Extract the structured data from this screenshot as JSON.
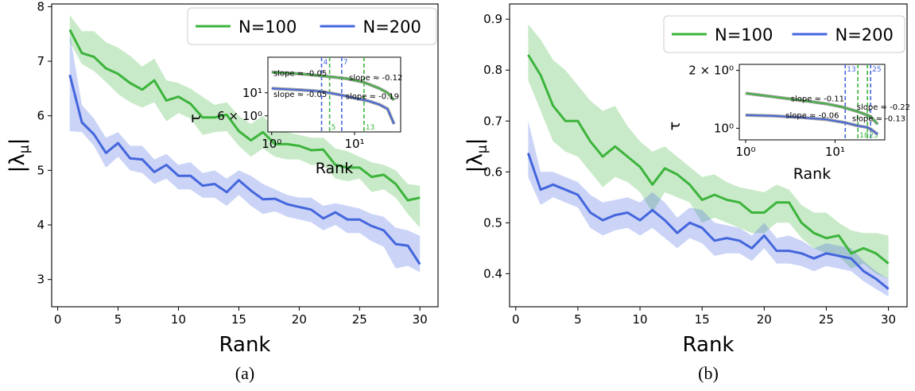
{
  "colors": {
    "n100": "#3cb43c",
    "n200": "#4466dd",
    "fit": "#888888"
  },
  "chart_data": [
    {
      "type": "line",
      "caption": "(a)",
      "xlabel": "Rank",
      "ylabel": "|λ",
      "ylabel_sub": "μ",
      "xlim": [
        -0.5,
        31.5
      ],
      "ylim": [
        2.5,
        8.05
      ],
      "xticks": [
        0,
        5,
        10,
        15,
        20,
        25,
        30
      ],
      "yticks": [
        3,
        4,
        5,
        6,
        7,
        8
      ],
      "legend_position": "top-right",
      "series": [
        {
          "name": "N=100",
          "x": [
            1,
            2,
            3,
            4,
            5,
            6,
            7,
            8,
            9,
            10,
            11,
            12,
            13,
            14,
            15,
            16,
            17,
            18,
            19,
            20,
            21,
            22,
            23,
            24,
            25,
            26,
            27,
            28,
            29,
            30
          ],
          "values": [
            7.58,
            7.15,
            7.08,
            6.87,
            6.77,
            6.6,
            6.48,
            6.65,
            6.28,
            6.35,
            6.22,
            5.97,
            5.97,
            6.02,
            5.72,
            5.55,
            5.7,
            5.48,
            5.48,
            5.45,
            5.37,
            5.38,
            5.1,
            5.05,
            5.05,
            4.88,
            4.92,
            4.75,
            4.45,
            4.5
          ],
          "upper": [
            7.85,
            7.55,
            7.55,
            7.35,
            7.25,
            7.1,
            6.9,
            7.05,
            6.65,
            6.6,
            6.5,
            6.35,
            6.2,
            6.25,
            6.0,
            5.85,
            6.0,
            5.75,
            5.7,
            5.65,
            5.6,
            5.6,
            5.4,
            5.35,
            5.25,
            5.15,
            5.1,
            5.0,
            4.75,
            4.72
          ],
          "lower": [
            7.35,
            6.95,
            6.82,
            6.62,
            6.4,
            6.25,
            6.15,
            6.25,
            5.9,
            6.05,
            5.95,
            5.65,
            5.7,
            5.72,
            5.45,
            5.25,
            5.4,
            5.25,
            5.2,
            5.2,
            5.1,
            5.1,
            4.85,
            4.8,
            4.85,
            4.6,
            4.65,
            4.5,
            4.2,
            3.95
          ]
        },
        {
          "name": "N=200",
          "x": [
            1,
            2,
            3,
            4,
            5,
            6,
            7,
            8,
            9,
            10,
            11,
            12,
            13,
            14,
            15,
            16,
            17,
            18,
            19,
            20,
            21,
            22,
            23,
            24,
            25,
            26,
            27,
            28,
            29,
            30
          ],
          "values": [
            6.75,
            5.88,
            5.66,
            5.32,
            5.5,
            5.22,
            5.2,
            4.97,
            5.1,
            4.9,
            4.9,
            4.72,
            4.75,
            4.6,
            4.82,
            4.63,
            4.47,
            4.48,
            4.38,
            4.33,
            4.28,
            4.12,
            4.23,
            4.1,
            4.1,
            3.98,
            3.9,
            3.65,
            3.62,
            3.28
          ],
          "upper": [
            7.5,
            6.2,
            5.95,
            5.6,
            5.7,
            5.45,
            5.45,
            5.2,
            5.3,
            5.1,
            5.15,
            4.95,
            5.0,
            4.85,
            5.0,
            4.9,
            4.75,
            4.65,
            4.55,
            4.5,
            4.5,
            4.35,
            4.4,
            4.35,
            4.3,
            4.2,
            4.15,
            3.95,
            3.9,
            3.8
          ],
          "lower": [
            5.72,
            5.7,
            5.45,
            5.05,
            5.25,
            5.0,
            4.95,
            4.75,
            4.85,
            4.65,
            4.65,
            4.5,
            4.5,
            4.35,
            4.55,
            4.35,
            4.2,
            4.25,
            4.15,
            4.1,
            4.05,
            3.9,
            4.0,
            3.85,
            3.85,
            3.7,
            3.6,
            3.2,
            3.25,
            3.13
          ]
        }
      ],
      "inset": {
        "xlabel": "Rank",
        "ylabel": "τ",
        "x_scale": "log",
        "y_scale": "log",
        "xlim": [
          0.9,
          36
        ],
        "ylim": [
          4.2,
          22
        ],
        "xtick_labels": [
          "10⁰",
          "10¹"
        ],
        "ytick_labels": [
          "6 × 10⁰",
          "10¹"
        ],
        "series": [
          {
            "name": "N=100",
            "x": [
              1,
              2,
              3,
              5,
              8,
              13,
              20,
              25,
              30
            ],
            "values": [
              15.8,
              15.3,
              14.9,
              14.3,
              13.7,
              12.6,
              11.0,
              10.0,
              8.5
            ]
          },
          {
            "name": "N=200",
            "x": [
              1,
              2,
              3,
              4,
              7,
              10,
              15,
              20,
              25,
              30
            ],
            "values": [
              11.0,
              10.7,
              10.5,
              10.3,
              9.5,
              8.9,
              8.3,
              7.7,
              7.0,
              5.0
            ]
          }
        ],
        "vlines": [
          {
            "x": 4,
            "series": "N=200",
            "label": "4"
          },
          {
            "x": 7,
            "series": "N=200",
            "label": "7"
          },
          {
            "x": 5,
            "series": "N=100",
            "label": "5"
          },
          {
            "x": 13,
            "series": "N=100",
            "label": "13"
          }
        ],
        "slope_labels": [
          {
            "text": "slope ≈ -0.05",
            "x": 1.05,
            "y": 14.6
          },
          {
            "text": "slope ≈ -0.12",
            "x": 8.6,
            "y": 13.2
          },
          {
            "text": "slope ≈ -0.05",
            "x": 1.05,
            "y": 9.1
          },
          {
            "text": "slope ≈ -0.19",
            "x": 7.8,
            "y": 8.7
          }
        ]
      }
    },
    {
      "type": "line",
      "caption": "(b)",
      "xlabel": "Rank",
      "ylabel": "|λ",
      "ylabel_sub": "μ",
      "xlim": [
        -0.5,
        31.5
      ],
      "ylim": [
        0.335,
        0.93
      ],
      "xticks": [
        0,
        5,
        10,
        15,
        20,
        25,
        30
      ],
      "yticks": [
        0.4,
        0.5,
        0.6,
        0.7,
        0.8,
        0.9
      ],
      "legend_position": "top-right",
      "series": [
        {
          "name": "N=100",
          "x": [
            1,
            2,
            3,
            4,
            5,
            6,
            7,
            8,
            9,
            10,
            11,
            12,
            13,
            14,
            15,
            16,
            17,
            18,
            19,
            20,
            21,
            22,
            23,
            24,
            25,
            26,
            27,
            28,
            29,
            30
          ],
          "values": [
            0.83,
            0.79,
            0.73,
            0.7,
            0.7,
            0.66,
            0.63,
            0.65,
            0.63,
            0.61,
            0.575,
            0.607,
            0.595,
            0.575,
            0.545,
            0.555,
            0.545,
            0.54,
            0.52,
            0.52,
            0.54,
            0.54,
            0.5,
            0.48,
            0.47,
            0.475,
            0.44,
            0.45,
            0.44,
            0.42
          ],
          "upper": [
            0.89,
            0.86,
            0.82,
            0.8,
            0.77,
            0.74,
            0.72,
            0.73,
            0.69,
            0.66,
            0.64,
            0.65,
            0.63,
            0.61,
            0.59,
            0.595,
            0.58,
            0.57,
            0.565,
            0.56,
            0.575,
            0.565,
            0.535,
            0.52,
            0.52,
            0.5,
            0.485,
            0.48,
            0.48,
            0.475
          ],
          "lower": [
            0.78,
            0.72,
            0.66,
            0.64,
            0.63,
            0.6,
            0.57,
            0.59,
            0.58,
            0.56,
            0.52,
            0.56,
            0.55,
            0.54,
            0.5,
            0.51,
            0.5,
            0.49,
            0.48,
            0.48,
            0.5,
            0.5,
            0.47,
            0.45,
            0.44,
            0.435,
            0.41,
            0.42,
            0.4,
            0.39
          ]
        },
        {
          "name": "N=200",
          "x": [
            1,
            2,
            3,
            4,
            5,
            6,
            7,
            8,
            9,
            10,
            11,
            12,
            13,
            14,
            15,
            16,
            17,
            18,
            19,
            20,
            21,
            22,
            23,
            24,
            25,
            26,
            27,
            28,
            29,
            30
          ],
          "values": [
            0.637,
            0.565,
            0.575,
            0.565,
            0.555,
            0.52,
            0.505,
            0.515,
            0.52,
            0.505,
            0.525,
            0.505,
            0.48,
            0.5,
            0.49,
            0.465,
            0.47,
            0.465,
            0.45,
            0.475,
            0.445,
            0.445,
            0.44,
            0.43,
            0.44,
            0.435,
            0.43,
            0.405,
            0.39,
            0.37
          ],
          "upper": [
            0.7,
            0.6,
            0.6,
            0.59,
            0.58,
            0.555,
            0.54,
            0.545,
            0.55,
            0.54,
            0.56,
            0.54,
            0.51,
            0.53,
            0.525,
            0.5,
            0.495,
            0.49,
            0.475,
            0.5,
            0.47,
            0.475,
            0.465,
            0.45,
            0.46,
            0.455,
            0.45,
            0.425,
            0.405,
            0.39
          ],
          "lower": [
            0.59,
            0.535,
            0.55,
            0.54,
            0.53,
            0.49,
            0.475,
            0.485,
            0.49,
            0.475,
            0.49,
            0.47,
            0.45,
            0.47,
            0.46,
            0.435,
            0.44,
            0.44,
            0.425,
            0.45,
            0.42,
            0.42,
            0.415,
            0.405,
            0.415,
            0.41,
            0.405,
            0.385,
            0.37,
            0.355
          ]
        }
      ],
      "inset": {
        "xlabel": "Rank",
        "ylabel": "τ",
        "x_scale": "log",
        "y_scale": "log",
        "xlim": [
          0.85,
          36
        ],
        "ylim": [
          0.87,
          2.15
        ],
        "xtick_labels": [
          "10⁰",
          "10¹"
        ],
        "ytick_labels": [
          "2 × 10⁰",
          "10⁰"
        ],
        "series": [
          {
            "name": "N=100",
            "x": [
              1,
              2,
              4,
              8,
              12,
              18,
              23,
              25,
              30
            ],
            "values": [
              1.52,
              1.46,
              1.4,
              1.34,
              1.29,
              1.22,
              1.17,
              1.15,
              1.05
            ]
          },
          {
            "name": "N=200",
            "x": [
              1,
              2,
              4,
              8,
              13,
              18,
              23,
              25,
              30
            ],
            "values": [
              1.17,
              1.16,
              1.14,
              1.11,
              1.07,
              1.03,
              1.01,
              0.99,
              0.93
            ]
          }
        ],
        "vlines": [
          {
            "x": 13,
            "series": "N=200",
            "label": "13"
          },
          {
            "x": 25,
            "series": "N=200",
            "label": "25"
          },
          {
            "x": 18,
            "series": "N=100",
            "label": "18"
          },
          {
            "x": 23,
            "series": "N=100",
            "label": "23"
          }
        ],
        "slope_labels": [
          {
            "text": "slope ≈ -0.11",
            "x": 3.2,
            "y": 1.38
          },
          {
            "text": "slope ≈ -0.22",
            "x": 17.5,
            "y": 1.25
          },
          {
            "text": "slope ≈ -0.06",
            "x": 2.8,
            "y": 1.13
          },
          {
            "text": "slope ≈ -0.13",
            "x": 15.5,
            "y": 1.09
          }
        ]
      }
    }
  ]
}
